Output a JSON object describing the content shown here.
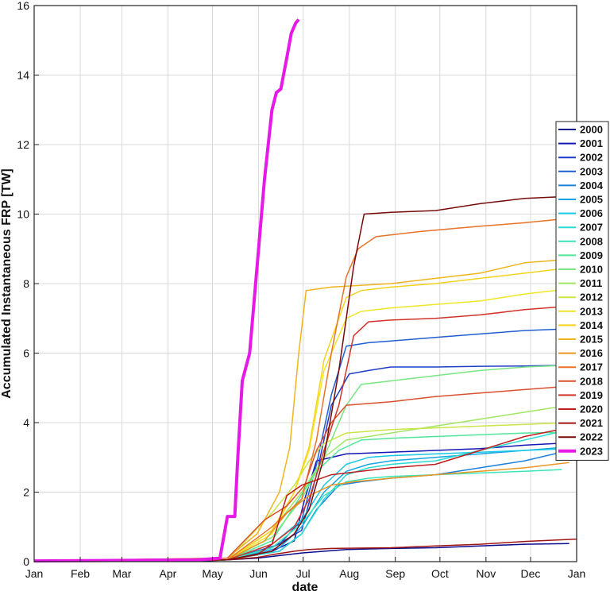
{
  "chart_data": {
    "type": "line",
    "title": "",
    "xlabel": "date",
    "ylabel": "Accumulated Instantaneous FRP [TW]",
    "ylim": [
      0,
      16
    ],
    "yticks": [
      0,
      2,
      4,
      6,
      8,
      10,
      12,
      14,
      16
    ],
    "xlim": [
      0,
      365
    ],
    "x_unit": "day of year",
    "xticks": [
      {
        "label": "Jan",
        "day": 0
      },
      {
        "label": "Feb",
        "day": 31
      },
      {
        "label": "Mar",
        "day": 59
      },
      {
        "label": "Apr",
        "day": 90
      },
      {
        "label": "May",
        "day": 120
      },
      {
        "label": "Jun",
        "day": 151
      },
      {
        "label": "Jul",
        "day": 181
      },
      {
        "label": "Aug",
        "day": 212
      },
      {
        "label": "Sep",
        "day": 243
      },
      {
        "label": "Oct",
        "day": 273
      },
      {
        "label": "Nov",
        "day": 304
      },
      {
        "label": "Dec",
        "day": 334
      },
      {
        "label": "Jan",
        "day": 365
      }
    ],
    "grid": true,
    "legend_position": "right",
    "series": [
      {
        "name": "2000",
        "color": "#0a0a8c",
        "x": [
          0,
          120,
          150,
          180,
          210,
          240,
          270,
          300,
          330,
          360
        ],
        "y": [
          0.02,
          0.03,
          0.1,
          0.25,
          0.35,
          0.38,
          0.4,
          0.45,
          0.5,
          0.52
        ]
      },
      {
        "name": "2001",
        "color": "#1515b4",
        "x": [
          0,
          130,
          160,
          175,
          182,
          190,
          210,
          240,
          270,
          300,
          330,
          360
        ],
        "y": [
          0.02,
          0.05,
          0.3,
          0.6,
          1.8,
          2.9,
          3.1,
          3.15,
          3.2,
          3.25,
          3.35,
          3.42
        ]
      },
      {
        "name": "2002",
        "color": "#1f3cc8",
        "x": [
          0,
          130,
          160,
          180,
          190,
          200,
          212,
          225,
          240,
          270,
          300,
          330,
          360
        ],
        "y": [
          0.02,
          0.05,
          0.4,
          0.9,
          2.5,
          4.5,
          5.4,
          5.5,
          5.6,
          5.6,
          5.62,
          5.63,
          5.65
        ]
      },
      {
        "name": "2003",
        "color": "#205fd2",
        "x": [
          0,
          130,
          165,
          180,
          190,
          200,
          210,
          225,
          240,
          270,
          300,
          330,
          360
        ],
        "y": [
          0.02,
          0.05,
          0.5,
          1.2,
          2.8,
          4.8,
          6.2,
          6.3,
          6.35,
          6.45,
          6.55,
          6.65,
          6.7
        ]
      },
      {
        "name": "2004",
        "color": "#1e82dc",
        "x": [
          0,
          130,
          165,
          180,
          190,
          205,
          220,
          240,
          270,
          300,
          330,
          360
        ],
        "y": [
          0.02,
          0.05,
          0.3,
          0.8,
          1.5,
          2.2,
          2.3,
          2.4,
          2.5,
          2.7,
          2.9,
          3.2
        ]
      },
      {
        "name": "2005",
        "color": "#14a5e6",
        "x": [
          0,
          130,
          165,
          180,
          195,
          210,
          225,
          240,
          270,
          300,
          330,
          360
        ],
        "y": [
          0.02,
          0.05,
          0.4,
          1.0,
          2.0,
          2.6,
          2.8,
          2.9,
          3.0,
          3.1,
          3.2,
          3.3
        ]
      },
      {
        "name": "2006",
        "color": "#19c8e6",
        "x": [
          0,
          130,
          160,
          180,
          195,
          210,
          225,
          240,
          270,
          300,
          330,
          360
        ],
        "y": [
          0.02,
          0.05,
          0.5,
          1.2,
          2.2,
          2.8,
          3.0,
          3.05,
          3.1,
          3.15,
          3.2,
          3.25
        ]
      },
      {
        "name": "2007",
        "color": "#28dcd2",
        "x": [
          0,
          130,
          165,
          180,
          195,
          210,
          225,
          240,
          270,
          300,
          330,
          360
        ],
        "y": [
          0.02,
          0.05,
          0.3,
          0.8,
          1.8,
          2.5,
          2.7,
          2.8,
          2.9,
          3.2,
          3.5,
          3.8
        ]
      },
      {
        "name": "2008",
        "color": "#3ce6b9",
        "x": [
          0,
          130,
          160,
          180,
          195,
          210,
          225,
          240,
          270,
          300,
          330,
          355
        ],
        "y": [
          0.02,
          0.05,
          0.4,
          1.1,
          1.9,
          2.3,
          2.4,
          2.45,
          2.5,
          2.55,
          2.6,
          2.65
        ]
      },
      {
        "name": "2009",
        "color": "#50e69b",
        "x": [
          0,
          130,
          160,
          175,
          190,
          205,
          220,
          240,
          270,
          300,
          330,
          360
        ],
        "y": [
          0.02,
          0.05,
          0.6,
          1.6,
          2.6,
          3.2,
          3.5,
          3.55,
          3.6,
          3.65,
          3.7,
          3.72
        ]
      },
      {
        "name": "2010",
        "color": "#78e682",
        "x": [
          0,
          130,
          160,
          180,
          195,
          210,
          220,
          240,
          270,
          300,
          330,
          360
        ],
        "y": [
          0.02,
          0.05,
          0.7,
          1.8,
          3.0,
          4.5,
          5.1,
          5.2,
          5.35,
          5.5,
          5.6,
          5.65
        ]
      },
      {
        "name": "2011",
        "color": "#a0e664",
        "x": [
          0,
          130,
          160,
          180,
          195,
          210,
          225,
          240,
          270,
          300,
          330,
          360
        ],
        "y": [
          0.02,
          0.05,
          0.9,
          2.0,
          3.0,
          3.5,
          3.6,
          3.7,
          3.9,
          4.1,
          4.3,
          4.5
        ]
      },
      {
        "name": "2012",
        "color": "#c8e646",
        "x": [
          0,
          130,
          160,
          175,
          185,
          195,
          210,
          225,
          240,
          270,
          300,
          330,
          360
        ],
        "y": [
          0.02,
          0.05,
          1.4,
          2.2,
          2.9,
          3.4,
          3.7,
          3.75,
          3.8,
          3.85,
          3.9,
          3.95,
          4.0
        ]
      },
      {
        "name": "2013",
        "color": "#f0e628",
        "x": [
          0,
          130,
          160,
          175,
          185,
          195,
          210,
          220,
          240,
          270,
          300,
          330,
          360
        ],
        "y": [
          0.02,
          0.05,
          0.8,
          2.0,
          3.2,
          5.5,
          7.0,
          7.2,
          7.3,
          7.4,
          7.5,
          7.7,
          7.85
        ]
      },
      {
        "name": "2014",
        "color": "#f5d21e",
        "x": [
          0,
          130,
          160,
          175,
          185,
          195,
          210,
          220,
          240,
          270,
          300,
          330,
          360
        ],
        "y": [
          0.02,
          0.05,
          0.9,
          2.0,
          3.3,
          5.8,
          7.6,
          7.8,
          7.9,
          8.0,
          8.15,
          8.3,
          8.45
        ]
      },
      {
        "name": "2015",
        "color": "#f0b41e",
        "x": [
          0,
          130,
          150,
          165,
          172,
          178,
          183,
          200,
          240,
          270,
          300,
          330,
          360
        ],
        "y": [
          0.02,
          0.1,
          0.8,
          2.0,
          3.3,
          6.0,
          7.8,
          7.9,
          8.0,
          8.15,
          8.3,
          8.6,
          8.7
        ]
      },
      {
        "name": "2016",
        "color": "#eb9623",
        "x": [
          0,
          130,
          155,
          170,
          185,
          200,
          215,
          240,
          270,
          300,
          330,
          360
        ],
        "y": [
          0.02,
          0.05,
          0.6,
          1.4,
          1.9,
          2.2,
          2.3,
          2.4,
          2.5,
          2.6,
          2.7,
          2.85
        ]
      },
      {
        "name": "2017",
        "color": "#e67328",
        "x": [
          0,
          130,
          160,
          180,
          190,
          200,
          210,
          218,
          230,
          260,
          300,
          330,
          353
        ],
        "y": [
          0.02,
          0.05,
          1.0,
          1.8,
          3.5,
          6.0,
          8.2,
          9.0,
          9.35,
          9.5,
          9.65,
          9.75,
          9.85
        ]
      },
      {
        "name": "2018",
        "color": "#dc502d",
        "x": [
          0,
          130,
          155,
          170,
          182,
          190,
          200,
          210,
          240,
          270,
          300,
          330,
          360
        ],
        "y": [
          0.02,
          0.1,
          1.2,
          1.6,
          2.2,
          3.2,
          4.0,
          4.5,
          4.6,
          4.75,
          4.85,
          4.95,
          5.05
        ]
      },
      {
        "name": "2019",
        "color": "#d23228",
        "x": [
          0,
          130,
          160,
          175,
          185,
          195,
          205,
          215,
          225,
          240,
          270,
          300,
          330,
          360
        ],
        "y": [
          0.02,
          0.05,
          0.5,
          1.0,
          1.8,
          3.2,
          4.5,
          6.5,
          6.9,
          6.95,
          7.0,
          7.1,
          7.25,
          7.35
        ]
      },
      {
        "name": "2020",
        "color": "#be1e1e",
        "x": [
          0,
          130,
          150,
          160,
          170,
          180,
          200,
          240,
          270,
          300,
          330,
          365
        ],
        "y": [
          0.02,
          0.05,
          0.2,
          0.5,
          1.9,
          2.2,
          2.5,
          2.7,
          2.8,
          3.2,
          3.6,
          3.9
        ]
      },
      {
        "name": "2021",
        "color": "#a01414",
        "x": [
          0,
          130,
          150,
          160,
          175,
          185,
          200,
          240,
          270,
          300,
          330,
          365
        ],
        "y": [
          0.02,
          0.05,
          0.12,
          0.2,
          0.3,
          0.35,
          0.38,
          0.4,
          0.45,
          0.5,
          0.58,
          0.65
        ]
      },
      {
        "name": "2022",
        "color": "#780a0a",
        "x": [
          0,
          130,
          160,
          175,
          185,
          195,
          205,
          215,
          222,
          240,
          270,
          300,
          330,
          355
        ],
        "y": [
          0.02,
          0.05,
          0.3,
          0.8,
          1.5,
          3.0,
          5.5,
          8.5,
          10.0,
          10.05,
          10.1,
          10.3,
          10.45,
          10.5
        ]
      },
      {
        "name": "2023",
        "color": "#e619e6",
        "x": [
          0,
          110,
          125,
          130,
          135,
          137,
          140,
          145,
          150,
          155,
          160,
          163,
          166,
          170,
          173,
          176,
          178
        ],
        "y": [
          0.02,
          0.05,
          0.1,
          1.3,
          1.3,
          3.0,
          5.2,
          6.0,
          8.5,
          11.0,
          13.0,
          13.5,
          13.6,
          14.5,
          15.2,
          15.5,
          15.6
        ]
      }
    ]
  }
}
